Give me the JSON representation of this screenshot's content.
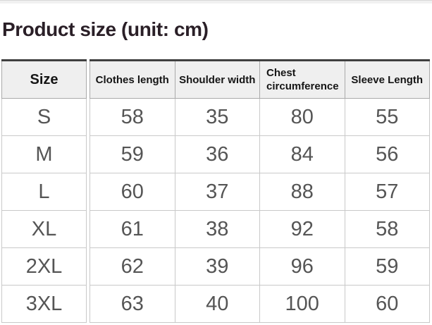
{
  "header": {
    "title": "Product size (unit: cm)"
  },
  "colors": {
    "top_strip": "#f1f1f1",
    "title_text": "#2a1f27",
    "table_top_border": "#3f3f3f",
    "header_cell_bg": "#efefef",
    "header_cell_border": "#a9a9a9",
    "data_cell_border": "#c9c9c9",
    "data_text": "#555555"
  },
  "table": {
    "columns": [
      "Size",
      "Clothes length",
      "Shoulder width",
      "Chest circumference",
      "Sleeve Length"
    ],
    "rows": [
      {
        "size": "S",
        "values": [
          "58",
          "35",
          "80",
          "55"
        ]
      },
      {
        "size": "M",
        "values": [
          "59",
          "36",
          "84",
          "56"
        ]
      },
      {
        "size": "L",
        "values": [
          "60",
          "37",
          "88",
          "57"
        ]
      },
      {
        "size": "XL",
        "values": [
          "61",
          "38",
          "92",
          "58"
        ]
      },
      {
        "size": "2XL",
        "values": [
          "62",
          "39",
          "96",
          "59"
        ]
      },
      {
        "size": "3XL",
        "values": [
          "63",
          "40",
          "100",
          "60"
        ]
      }
    ]
  },
  "chart_data": {
    "type": "table",
    "title": "Product size (unit: cm)",
    "columns": [
      "Size",
      "Clothes length",
      "Shoulder width",
      "Chest circumference",
      "Sleeve Length"
    ],
    "rows": [
      [
        "S",
        58,
        35,
        80,
        55
      ],
      [
        "M",
        59,
        36,
        84,
        56
      ],
      [
        "L",
        60,
        37,
        88,
        57
      ],
      [
        "XL",
        61,
        38,
        92,
        58
      ],
      [
        "2XL",
        62,
        39,
        96,
        59
      ],
      [
        "3XL",
        63,
        40,
        100,
        60
      ]
    ]
  }
}
